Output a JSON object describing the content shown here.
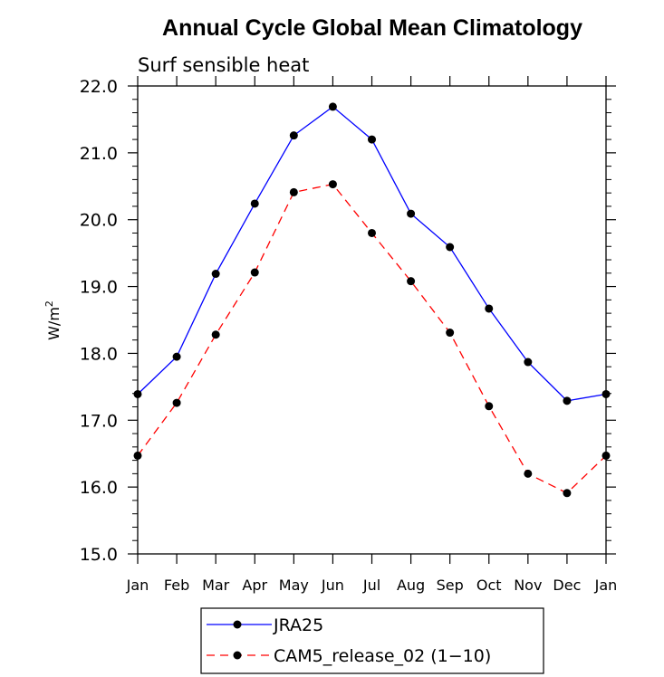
{
  "chart_data": {
    "type": "line",
    "title": "Annual Cycle Global Mean Climatology",
    "subtitle": "Surf sensible heat",
    "ylabel": "W/m",
    "ylabel_superscript": "2",
    "xlabel": "",
    "categories": [
      "Jan",
      "Feb",
      "Mar",
      "Apr",
      "May",
      "Jun",
      "Jul",
      "Aug",
      "Sep",
      "Oct",
      "Nov",
      "Dec",
      "Jan"
    ],
    "ylim": [
      15.0,
      22.0
    ],
    "yticks": [
      "15.0",
      "16.0",
      "17.0",
      "18.0",
      "19.0",
      "20.0",
      "21.0",
      "22.0"
    ],
    "grid": false,
    "legend_position": "bottom",
    "series": [
      {
        "name": "JRA25",
        "color": "#0000ff",
        "dash": "solid",
        "marker": "filled-circle",
        "values": [
          17.39,
          17.95,
          19.19,
          20.24,
          21.26,
          21.69,
          21.2,
          20.09,
          19.59,
          18.67,
          17.87,
          17.29,
          17.39
        ]
      },
      {
        "name": "CAM5_release_02 (1−10)",
        "color": "#ff0000",
        "dash": "dashed",
        "marker": "filled-circle",
        "values": [
          16.47,
          17.26,
          18.28,
          19.21,
          20.41,
          20.53,
          19.8,
          19.08,
          18.31,
          17.21,
          16.2,
          15.91,
          16.47
        ]
      }
    ]
  }
}
